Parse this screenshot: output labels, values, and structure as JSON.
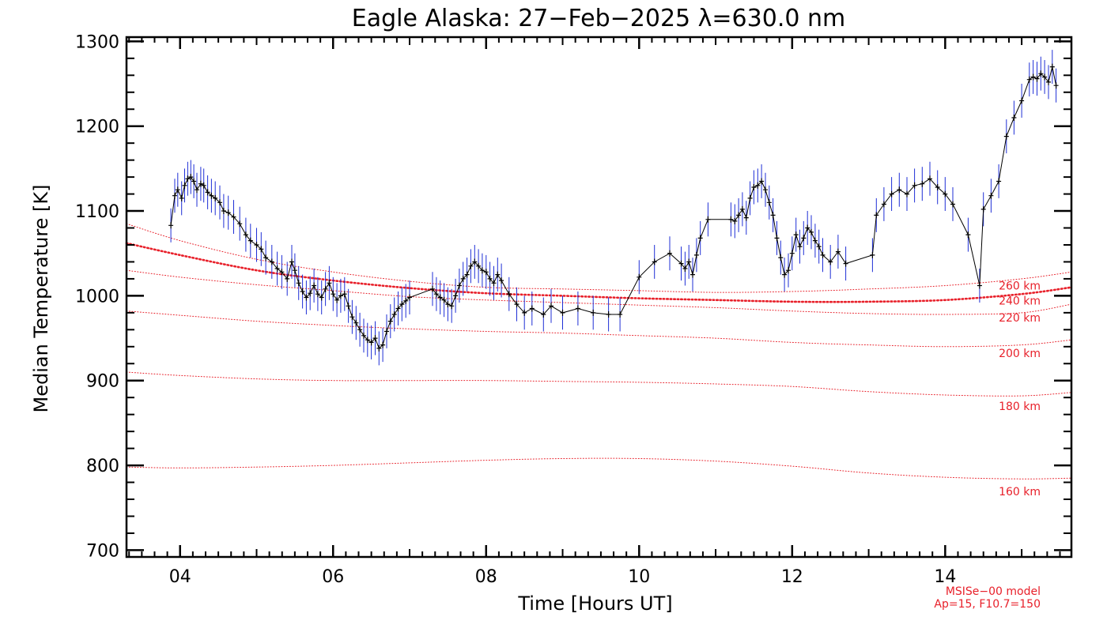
{
  "colors": {
    "data_line": "#000000",
    "error_bars": "#1f2fd6",
    "model_lines": "#e8202a",
    "axes": "#000000"
  },
  "chart_data": {
    "type": "line",
    "title": "Eagle Alaska: 27−Feb−2025 λ=630.0 nm",
    "xlabel": "Time [Hours UT]",
    "ylabel": "Median Temperature [K]",
    "xlim": [
      3.3,
      15.65
    ],
    "ylim": [
      692,
      1305
    ],
    "x_ticks": [
      4,
      6,
      8,
      10,
      12,
      14
    ],
    "x_tick_labels": [
      "04",
      "06",
      "08",
      "10",
      "12",
      "14"
    ],
    "y_ticks": [
      700,
      800,
      900,
      1000,
      1100,
      1200,
      1300
    ],
    "y_tick_labels": [
      "700",
      "800",
      "900",
      "1000",
      "1100",
      "1200",
      "1300"
    ],
    "grid": false,
    "series": [
      {
        "kind": "measured",
        "errors_shown": true,
        "x": [
          3.88,
          3.93,
          3.97,
          4.02,
          4.06,
          4.1,
          4.14,
          4.18,
          4.22,
          4.27,
          4.31,
          4.36,
          4.41,
          4.46,
          4.52,
          4.57,
          4.63,
          4.7,
          4.78,
          4.86,
          4.92,
          5.0,
          5.06,
          5.12,
          5.2,
          5.27,
          5.33,
          5.4,
          5.46,
          5.5,
          5.55,
          5.6,
          5.65,
          5.7,
          5.75,
          5.8,
          5.85,
          5.9,
          5.95,
          6.0,
          6.05,
          6.1,
          6.15,
          6.2,
          6.25,
          6.3,
          6.35,
          6.4,
          6.45,
          6.5,
          6.55,
          6.6,
          6.65,
          6.7,
          6.75,
          6.8,
          6.85,
          6.9,
          6.95,
          7.0,
          7.3,
          7.35,
          7.4,
          7.45,
          7.5,
          7.55,
          7.6,
          7.65,
          7.7,
          7.75,
          7.8,
          7.85,
          7.9,
          7.95,
          8.0,
          8.05,
          8.1,
          8.15,
          8.2,
          8.3,
          8.4,
          8.5,
          8.6,
          8.75,
          8.85,
          9.0,
          9.2,
          9.4,
          9.6,
          9.75,
          10.0,
          10.2,
          10.4,
          10.55,
          10.6,
          10.65,
          10.7,
          10.75,
          10.8,
          10.9,
          11.2,
          11.25,
          11.3,
          11.35,
          11.4,
          11.45,
          11.5,
          11.55,
          11.6,
          11.65,
          11.7,
          11.75,
          11.8,
          11.85,
          11.9,
          11.95,
          12.0,
          12.05,
          12.1,
          12.15,
          12.2,
          12.25,
          12.3,
          12.35,
          12.4,
          12.5,
          12.6,
          12.7,
          13.05,
          13.1,
          13.2,
          13.3,
          13.4,
          13.5,
          13.6,
          13.7,
          13.8,
          13.9,
          14.0,
          14.1,
          14.3,
          14.45,
          14.5,
          14.6,
          14.7,
          14.8,
          14.9,
          15.0,
          15.1,
          15.15,
          15.2,
          15.25,
          15.3,
          15.35,
          15.4,
          15.45
        ],
        "y": [
          1083,
          1118,
          1125,
          1115,
          1130,
          1138,
          1140,
          1135,
          1125,
          1132,
          1130,
          1122,
          1118,
          1115,
          1110,
          1100,
          1098,
          1093,
          1085,
          1072,
          1065,
          1060,
          1055,
          1045,
          1040,
          1032,
          1028,
          1020,
          1040,
          1030,
          1015,
          1005,
          998,
          1003,
          1012,
          1002,
          998,
          1008,
          1015,
          1002,
          995,
          1000,
          1002,
          988,
          975,
          968,
          960,
          953,
          948,
          945,
          950,
          938,
          942,
          958,
          970,
          978,
          985,
          990,
          994,
          998,
          1008,
          1002,
          998,
          995,
          990,
          988,
          1000,
          1012,
          1020,
          1025,
          1035,
          1040,
          1035,
          1030,
          1028,
          1020,
          1015,
          1025,
          1018,
          1002,
          990,
          980,
          985,
          978,
          988,
          980,
          985,
          980,
          978,
          978,
          1022,
          1040,
          1050,
          1038,
          1032,
          1040,
          1025,
          1048,
          1068,
          1090,
          1090,
          1088,
          1095,
          1102,
          1092,
          1115,
          1128,
          1130,
          1135,
          1125,
          1110,
          1095,
          1068,
          1045,
          1025,
          1030,
          1050,
          1072,
          1058,
          1068,
          1080,
          1075,
          1065,
          1058,
          1048,
          1040,
          1052,
          1038,
          1048,
          1095,
          1108,
          1120,
          1125,
          1120,
          1130,
          1132,
          1138,
          1128,
          1120,
          1108,
          1072,
          1012,
          1102,
          1118,
          1135,
          1188,
          1210,
          1230,
          1255,
          1258,
          1256,
          1262,
          1258,
          1252,
          1270,
          1248
        ],
        "err": 20
      }
    ],
    "model": {
      "name": "MSISe−00 model",
      "params": "Ap=15, F10.7=150",
      "curves": [
        {
          "label": "260 km",
          "x": [
            3.3,
            4,
            5,
            6,
            7,
            8,
            9,
            10,
            11,
            12,
            13,
            14,
            15,
            15.65
          ],
          "y": [
            1085,
            1065,
            1043,
            1028,
            1017,
            1010,
            1008,
            1006,
            1004,
            1005,
            1008,
            1012,
            1020,
            1028
          ]
        },
        {
          "label": "240 km",
          "x": [
            3.3,
            4,
            5,
            6,
            7,
            8,
            9,
            10,
            11,
            12,
            13,
            14,
            15,
            15.65
          ],
          "y": [
            1062,
            1048,
            1030,
            1018,
            1009,
            1003,
            1000,
            997,
            995,
            993,
            993,
            995,
            1002,
            1010
          ],
          "emphasized": true
        },
        {
          "label": "220 km",
          "x": [
            3.3,
            4,
            5,
            6,
            7,
            8,
            9,
            10,
            11,
            12,
            13,
            14,
            15,
            15.65
          ],
          "y": [
            1030,
            1022,
            1013,
            1006,
            999,
            995,
            992,
            989,
            986,
            982,
            979,
            978,
            980,
            990
          ]
        },
        {
          "label": "200 km",
          "x": [
            3.3,
            4,
            5,
            6,
            7,
            8,
            9,
            10,
            11,
            12,
            13,
            14,
            15,
            15.65
          ],
          "y": [
            982,
            977,
            970,
            965,
            961,
            958,
            956,
            953,
            950,
            945,
            942,
            940,
            942,
            948
          ]
        },
        {
          "label": "180 km",
          "x": [
            3.3,
            4,
            5,
            6,
            7,
            8,
            9,
            10,
            11,
            12,
            13,
            14,
            15,
            15.65
          ],
          "y": [
            910,
            906,
            902,
            900,
            900,
            900,
            899,
            898,
            896,
            893,
            887,
            883,
            882,
            886
          ]
        },
        {
          "label": "160 km",
          "x": [
            3.3,
            4,
            5,
            6,
            7,
            8,
            9,
            10,
            11,
            12,
            13,
            14,
            15,
            15.65
          ],
          "y": [
            798,
            797,
            798,
            800,
            803,
            806,
            808,
            808,
            805,
            799,
            791,
            786,
            784,
            785
          ]
        }
      ]
    }
  }
}
